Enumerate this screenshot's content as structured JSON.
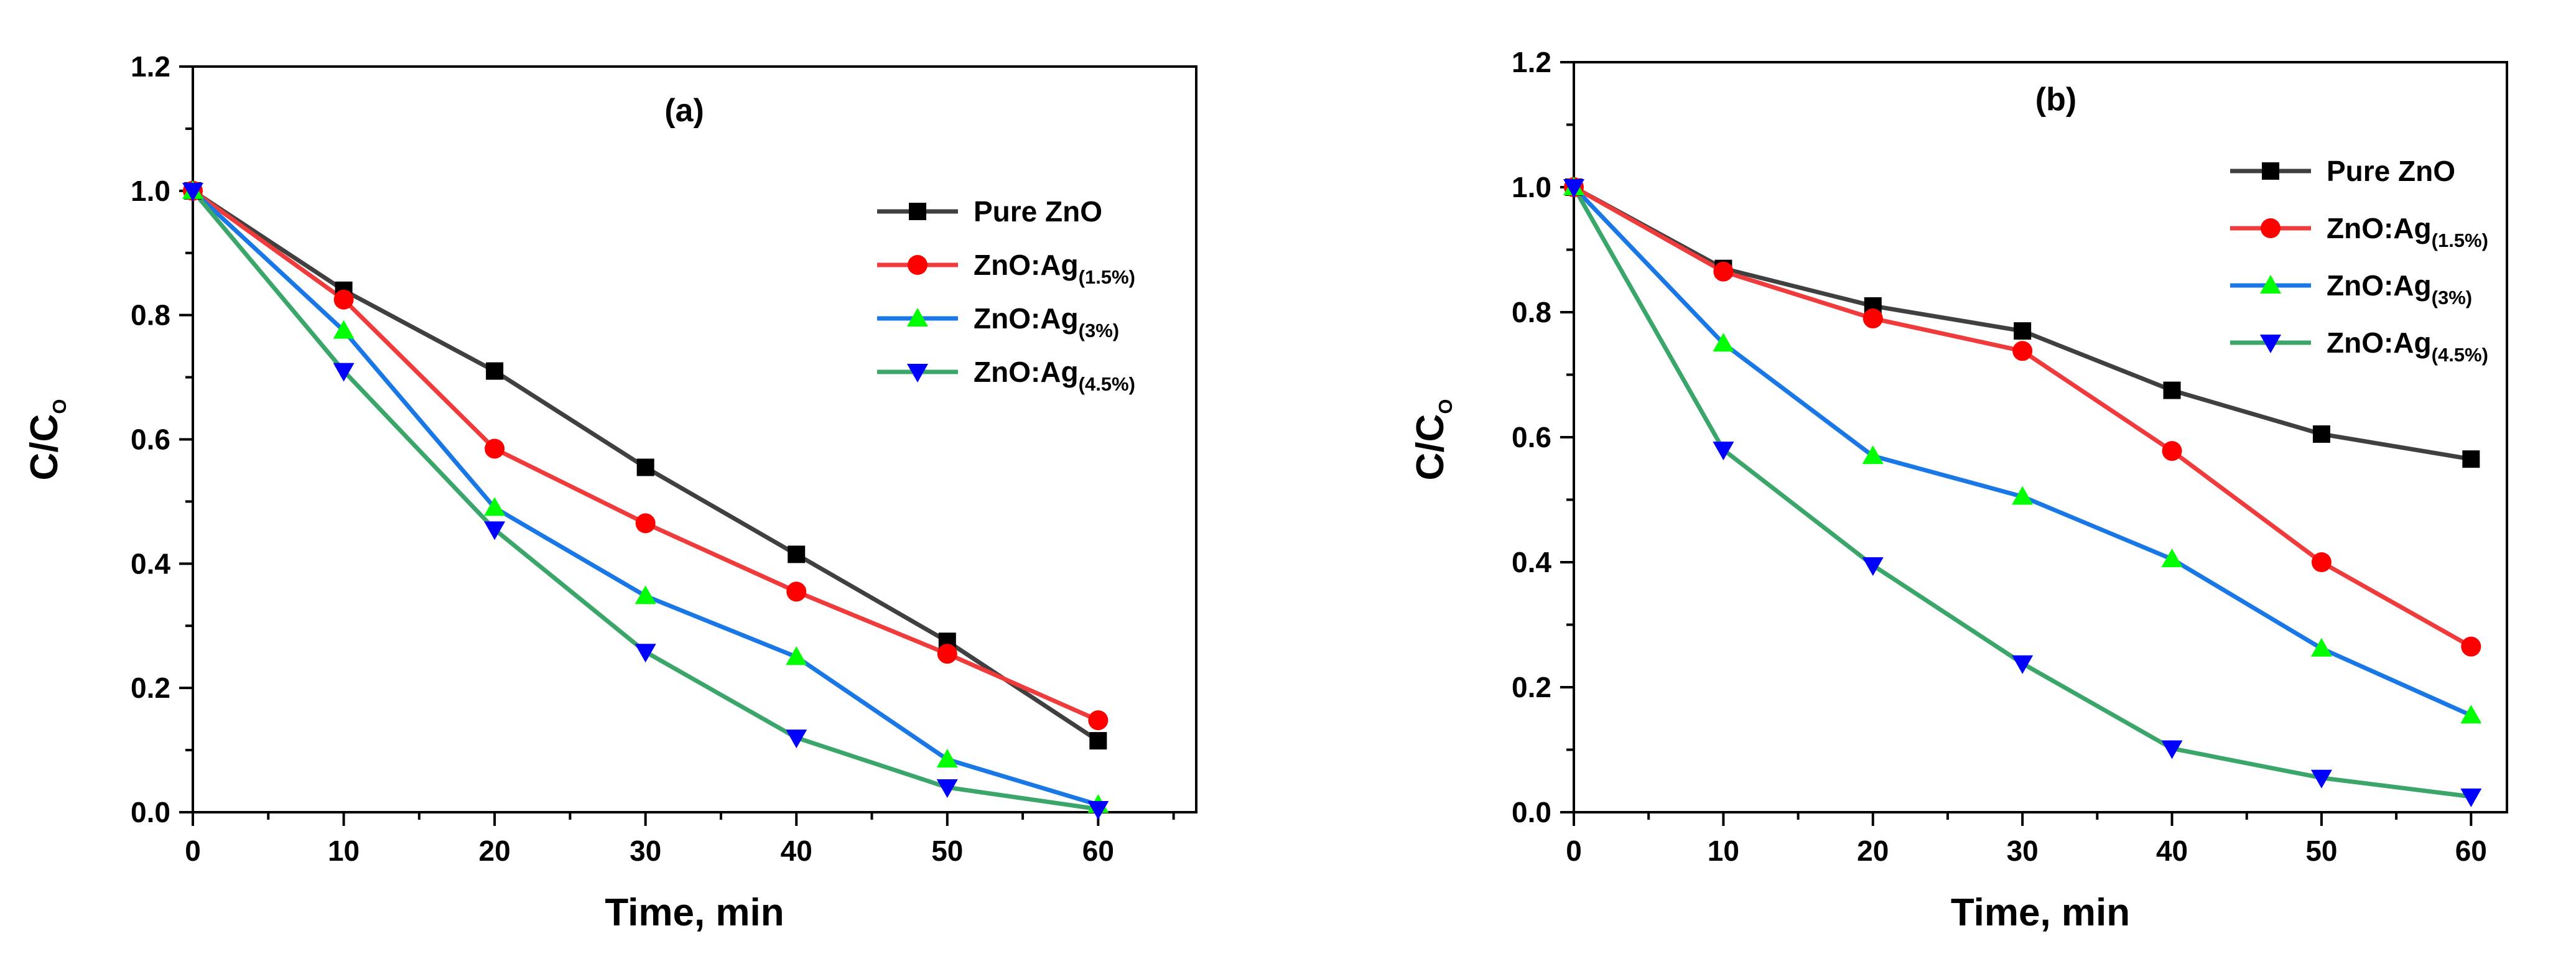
{
  "chart_data": [
    {
      "type": "line",
      "panel_label": "(a)",
      "xlabel": "Time, min",
      "ylabel_main": "C/C",
      "ylabel_sub": "O",
      "xlim": [
        0,
        66.5
      ],
      "ylim": [
        0,
        1.2
      ],
      "xticks": [
        0,
        10,
        20,
        30,
        40,
        50,
        60
      ],
      "xtick_labels": [
        "0",
        "10",
        "20",
        "30",
        "40",
        "50",
        "60"
      ],
      "yticks": [
        0,
        0.2,
        0.4,
        0.6,
        0.8,
        1.0,
        1.2
      ],
      "ytick_labels": [
        "0.0",
        "0.2",
        "0.4",
        "0.6",
        "0.8",
        "1.0",
        "1.2"
      ],
      "legend_position": "top-right",
      "x": [
        0,
        10,
        20,
        30,
        40,
        50,
        60
      ],
      "series": [
        {
          "name": "Pure ZnO",
          "label_main": "Pure ZnO",
          "label_sub": "",
          "line_color": "#404040",
          "marker_color": "#000000",
          "marker": "square",
          "values": [
            1.0,
            0.84,
            0.71,
            0.555,
            0.415,
            0.275,
            0.115
          ]
        },
        {
          "name": "ZnO:Ag(1.5%)",
          "label_main": "ZnO:Ag",
          "label_sub": "(1.5%)",
          "line_color": "#ef3b3b",
          "marker_color": "#ff0000",
          "marker": "circle",
          "values": [
            1.0,
            0.825,
            0.585,
            0.465,
            0.355,
            0.255,
            0.148
          ]
        },
        {
          "name": "ZnO:Ag(3%)",
          "label_main": "ZnO:Ag",
          "label_sub": "(3%)",
          "line_color": "#1a78e6",
          "marker_color": "#00ff00",
          "marker": "triangle-up",
          "values": [
            1.0,
            0.775,
            0.49,
            0.348,
            0.25,
            0.085,
            0.012
          ]
        },
        {
          "name": "ZnO:Ag(4.5%)",
          "label_main": "ZnO:Ag",
          "label_sub": "(4.5%)",
          "line_color": "#3aa66a",
          "marker_color": "#0000ff",
          "marker": "triangle-down",
          "values": [
            1.0,
            0.71,
            0.455,
            0.258,
            0.12,
            0.04,
            0.005
          ]
        }
      ]
    },
    {
      "type": "line",
      "panel_label": "(b)",
      "xlabel": "Time, min",
      "ylabel_main": "C/C",
      "ylabel_sub": "O",
      "xlim": [
        0,
        62.4
      ],
      "ylim": [
        0,
        1.2
      ],
      "xticks": [
        0,
        10,
        20,
        30,
        40,
        50,
        60
      ],
      "xtick_labels": [
        "0",
        "10",
        "20",
        "30",
        "40",
        "50",
        "60"
      ],
      "yticks": [
        0,
        0.2,
        0.4,
        0.6,
        0.8,
        1.0,
        1.2
      ],
      "ytick_labels": [
        "0.0",
        "0.2",
        "0.4",
        "0.6",
        "0.8",
        "1.0",
        "1.2"
      ],
      "legend_position": "top-right",
      "x": [
        0,
        10,
        20,
        30,
        40,
        50,
        60
      ],
      "series": [
        {
          "name": "Pure ZnO",
          "label_main": "Pure ZnO",
          "label_sub": "",
          "line_color": "#404040",
          "marker_color": "#000000",
          "marker": "square",
          "values": [
            1.0,
            0.87,
            0.81,
            0.77,
            0.675,
            0.605,
            0.565
          ]
        },
        {
          "name": "ZnO:Ag(1.5%)",
          "label_main": "ZnO:Ag",
          "label_sub": "(1.5%)",
          "line_color": "#ef3b3b",
          "marker_color": "#ff0000",
          "marker": "circle",
          "values": [
            1.0,
            0.865,
            0.79,
            0.738,
            0.578,
            0.4,
            0.265
          ]
        },
        {
          "name": "ZnO:Ag(3%)",
          "label_main": "ZnO:Ag",
          "label_sub": "(3%)",
          "line_color": "#1a78e6",
          "marker_color": "#00ff00",
          "marker": "triangle-up",
          "values": [
            1.0,
            0.75,
            0.57,
            0.505,
            0.405,
            0.262,
            0.155
          ]
        },
        {
          "name": "ZnO:Ag(4.5%)",
          "label_main": "ZnO:Ag",
          "label_sub": "(4.5%)",
          "line_color": "#3aa66a",
          "marker_color": "#0000ff",
          "marker": "triangle-down",
          "values": [
            1.0,
            0.58,
            0.395,
            0.238,
            0.102,
            0.055,
            0.025
          ]
        }
      ]
    }
  ]
}
